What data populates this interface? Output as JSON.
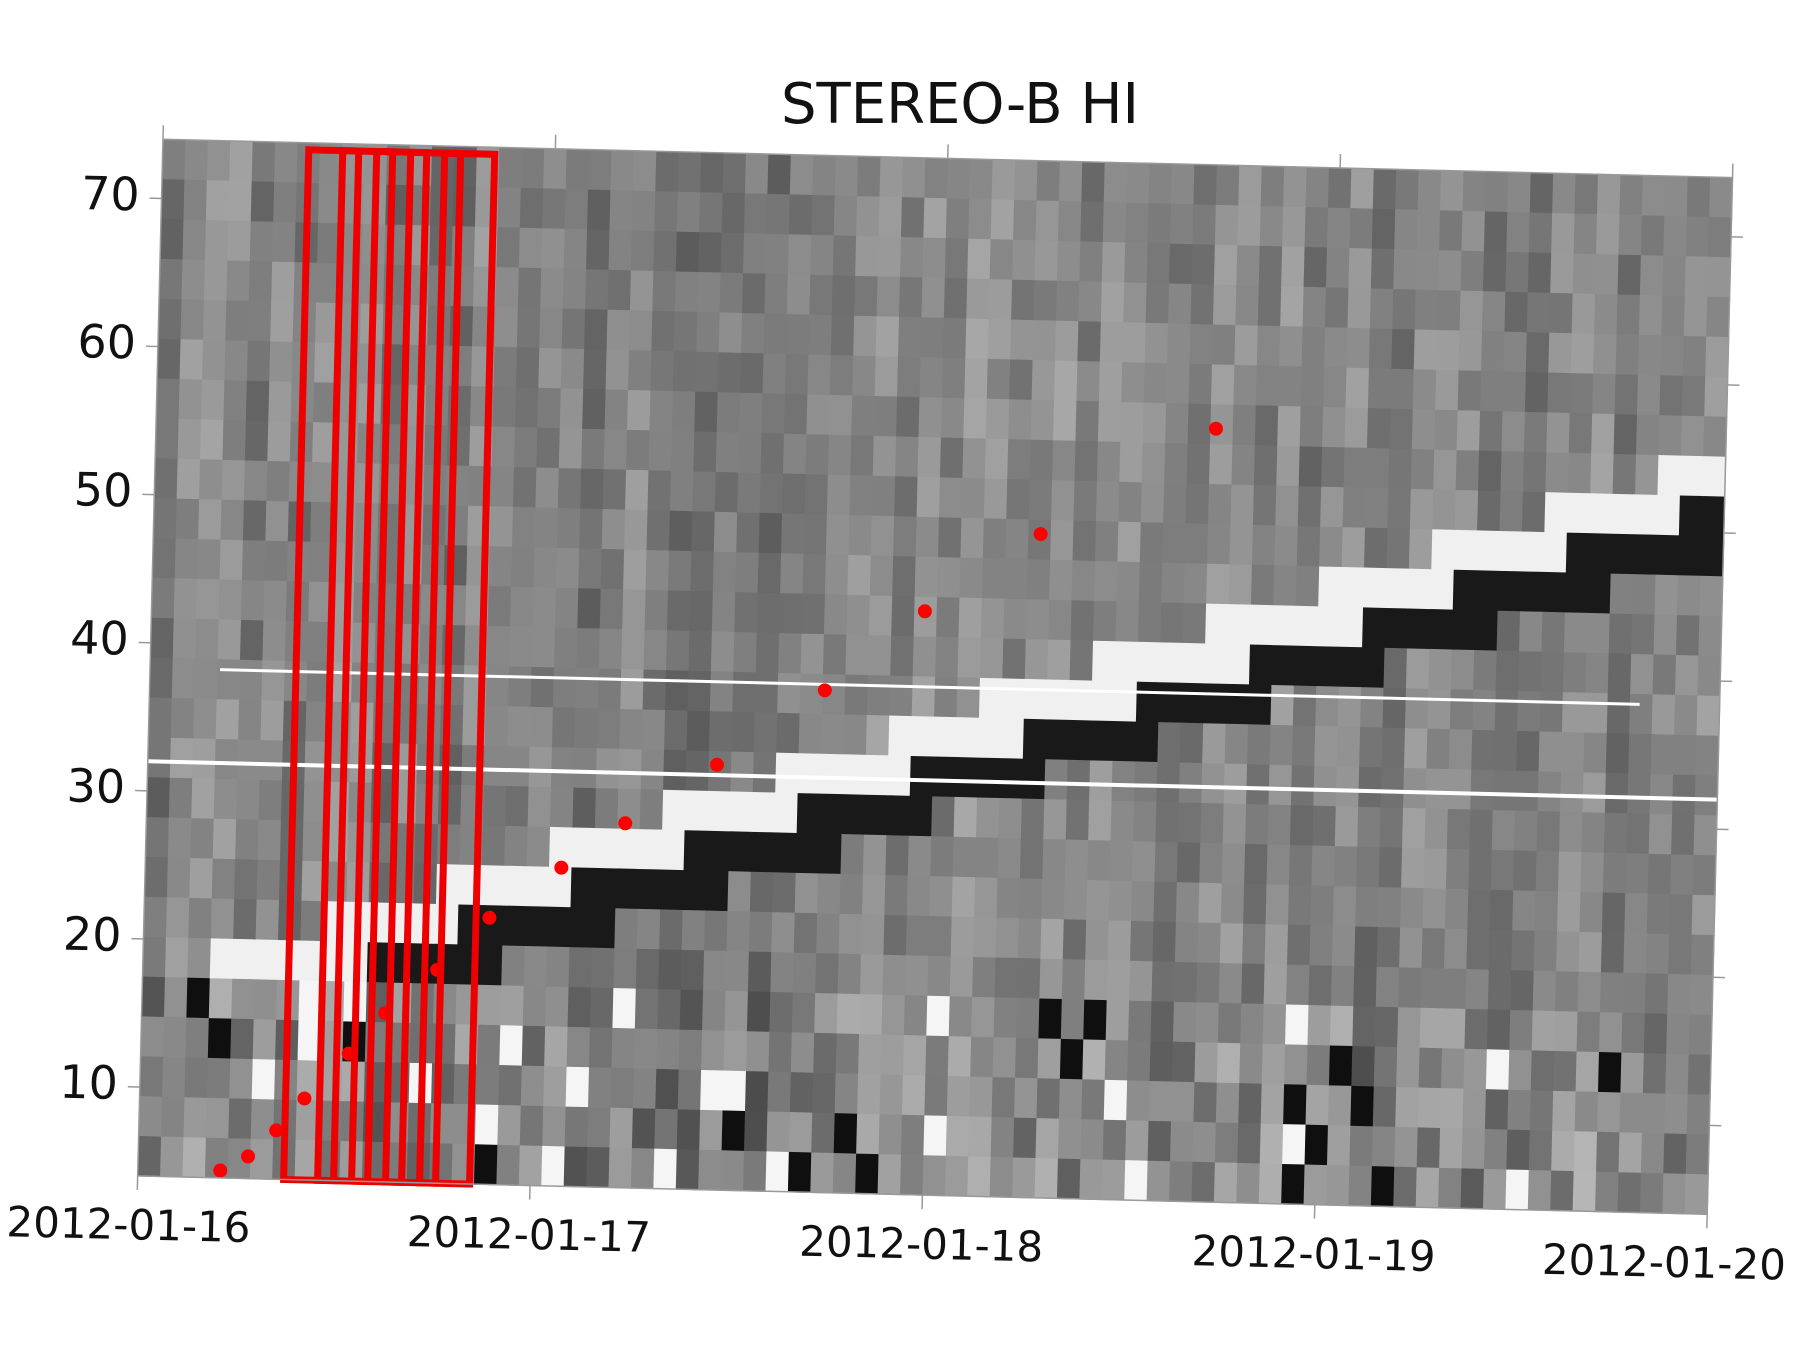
{
  "chart_data": {
    "type": "scatter",
    "title": "STEREO-B HI",
    "x": [
      16.21,
      16.28,
      16.35,
      16.42,
      16.53,
      16.62,
      16.75,
      16.88,
      17.06,
      17.22,
      17.45,
      17.72,
      17.97,
      18.26,
      18.7
    ],
    "values": [
      4.5,
      5.5,
      7.3,
      9.5,
      12.6,
      15.4,
      18.4,
      22.0,
      25.5,
      28.6,
      32.7,
      37.9,
      43.4,
      48.8,
      56.2
    ],
    "color": "#ff0000",
    "xlim": [
      16,
      20
    ],
    "xticks": [
      {
        "value": 16,
        "label": "2012-01-16"
      },
      {
        "value": 17,
        "label": "2012-01-17"
      },
      {
        "value": 18,
        "label": "2012-01-18"
      },
      {
        "value": 19,
        "label": "2012-01-19"
      },
      {
        "value": 20,
        "label": "2012-01-20"
      }
    ],
    "ylim": [
      4,
      74
    ],
    "yticks": [
      10,
      20,
      30,
      40,
      50,
      60,
      70
    ]
  }
}
